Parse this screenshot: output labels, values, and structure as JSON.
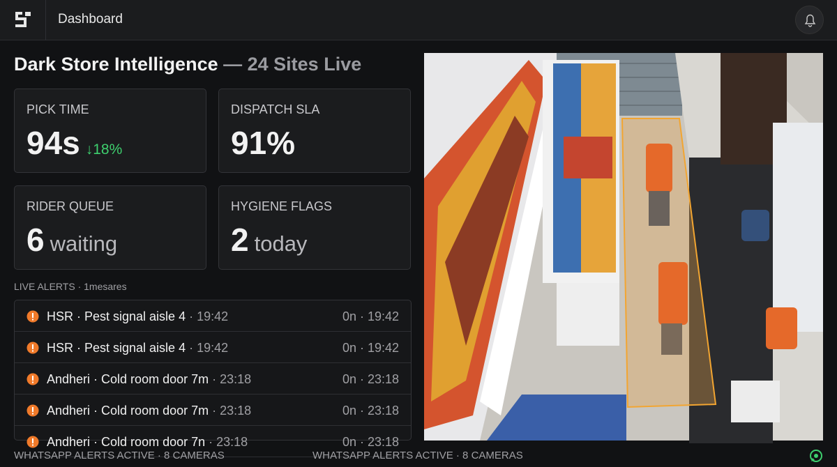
{
  "header": {
    "title": "Dashboard"
  },
  "page": {
    "title": "Dark Store Intelligence",
    "subtitle": "— 24 Sites Live"
  },
  "stats": [
    {
      "label": "PICK TIME",
      "value": "94s",
      "delta": "↓18%"
    },
    {
      "label": "DISPATCH SLA",
      "value": "91%"
    },
    {
      "label": "RIDER QUEUE",
      "value": "6",
      "unit": "waiting"
    },
    {
      "label": "HYGIENE FLAGS",
      "value": "2",
      "unit": "today"
    }
  ],
  "alerts": {
    "label": "LIVE ALERTS · 1mesares",
    "rows": [
      {
        "title": "HSR · Pest signal aisle 4",
        "time": "· 19:42",
        "status": "0n · 19:42"
      },
      {
        "title": "HSR · Pest signal aisle 4",
        "time": "· 19:42",
        "status": "0n · 19:42"
      },
      {
        "title": "Andheri · Cold room door 7m",
        "time": "· 23:18",
        "status": "0n · 23:18"
      },
      {
        "title": "Andheri · Cold room door 7m",
        "time": "· 23:18",
        "status": "0n · 23:18"
      },
      {
        "title": "Andheri · Cold room door 7n",
        "time": "· 23:18",
        "status": "0n · 23:18"
      }
    ]
  },
  "footer": [
    "WHATSAPP ALERTS ACTIVE · 8 CAMERAS",
    "WHATSAPP ALERTS ACTIVE · 8 CAMERAS"
  ]
}
